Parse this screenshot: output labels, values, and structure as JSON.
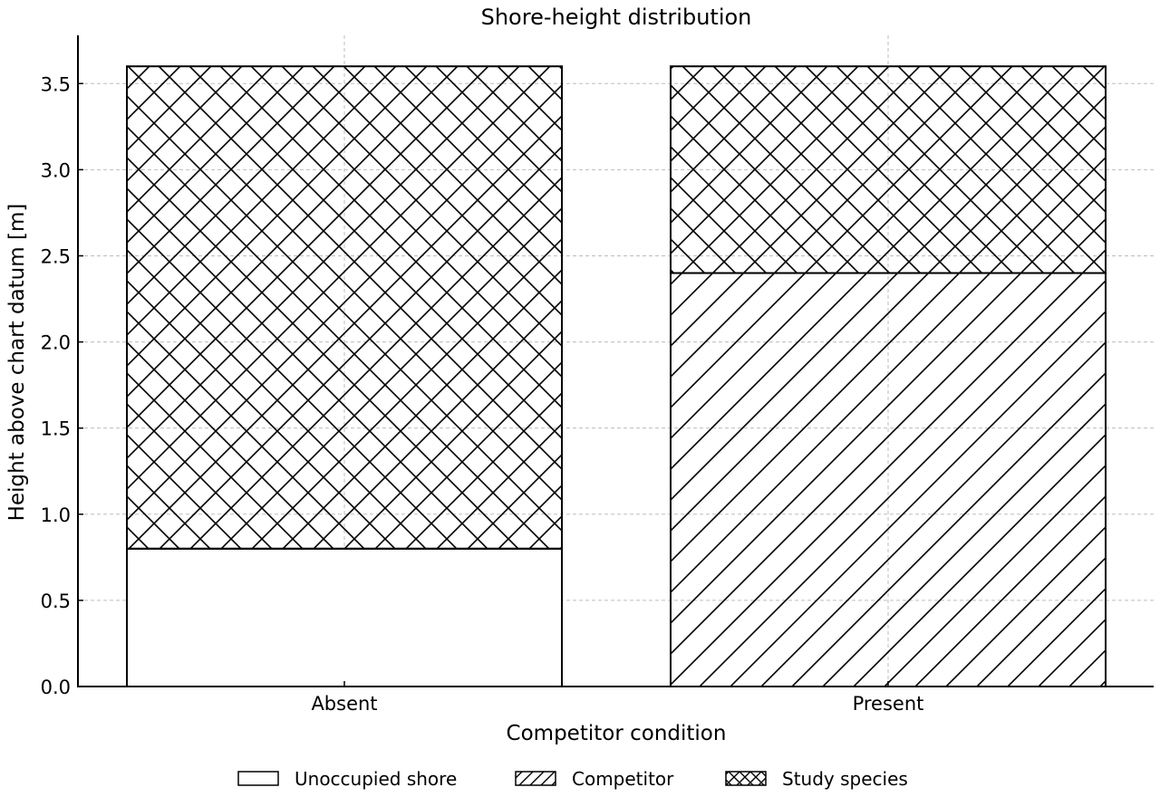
{
  "chart_data": {
    "type": "bar",
    "stacked": true,
    "title": "Shore-height distribution",
    "xlabel": "Competitor condition",
    "ylabel": "Height above chart datum [m]",
    "categories": [
      "Absent",
      "Present"
    ],
    "ylim": [
      0,
      3.78
    ],
    "yticks": [
      0.0,
      0.5,
      1.0,
      1.5,
      2.0,
      2.5,
      3.0,
      3.5
    ],
    "ytick_labels": [
      "0.0",
      "0.5",
      "1.0",
      "1.5",
      "2.0",
      "2.5",
      "3.0",
      "3.5"
    ],
    "grid": true,
    "legend_position": "bottom-center",
    "series": [
      {
        "name": "Unoccupied shore",
        "values": [
          0.8,
          0.0
        ],
        "pattern": "none"
      },
      {
        "name": "Competitor",
        "values": [
          0.0,
          2.4
        ],
        "pattern": "diagonal"
      },
      {
        "name": "Study species",
        "values": [
          2.8,
          1.2
        ],
        "pattern": "crosshatch"
      }
    ]
  }
}
